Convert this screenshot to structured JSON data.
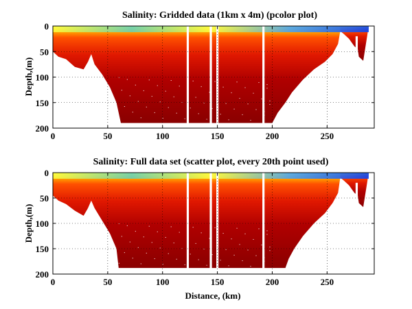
{
  "chart_data": [
    {
      "type": "heatmap",
      "title": "Salinity: Gridded data (1km x 4m) (pcolor plot)",
      "xlabel": "",
      "ylabel": "Depth,(m)",
      "xlim": [
        0,
        293
      ],
      "ylim": [
        200,
        0
      ],
      "x_ticks": [
        0,
        50,
        100,
        150,
        200,
        250
      ],
      "y_ticks": [
        0,
        50,
        100,
        150,
        200
      ],
      "grid": true,
      "colormap": "jet",
      "bottom_profile": [
        [
          0,
          50
        ],
        [
          5,
          60
        ],
        [
          12,
          65
        ],
        [
          20,
          80
        ],
        [
          28,
          85
        ],
        [
          32,
          70
        ],
        [
          35,
          55
        ],
        [
          38,
          75
        ],
        [
          45,
          95
        ],
        [
          52,
          120
        ],
        [
          58,
          150
        ],
        [
          62,
          190
        ],
        [
          200,
          190
        ],
        [
          205,
          170
        ],
        [
          212,
          150
        ],
        [
          218,
          130
        ],
        [
          228,
          105
        ],
        [
          238,
          85
        ],
        [
          248,
          70
        ],
        [
          255,
          55
        ],
        [
          260,
          35
        ],
        [
          262,
          10
        ]
      ],
      "bottom_profile_right": [
        [
          262,
          10
        ],
        [
          265,
          15
        ],
        [
          270,
          25
        ],
        [
          275,
          40
        ],
        [
          278,
          45
        ],
        [
          279,
          60
        ],
        [
          283,
          68
        ],
        [
          288,
          0
        ]
      ],
      "gaps": [
        {
          "x": [
            122,
            124
          ],
          "depth": [
            0,
            200
          ]
        },
        {
          "x": [
            143,
            145
          ],
          "depth": [
            0,
            200
          ]
        },
        {
          "x": [
            149,
            151
          ],
          "depth": [
            0,
            200
          ]
        },
        {
          "x": [
            191,
            193
          ],
          "depth": [
            0,
            200
          ]
        },
        {
          "x": [
            276,
            278
          ],
          "depth": [
            20,
            200
          ]
        }
      ],
      "surface_band": {
        "depth": [
          0,
          12
        ],
        "value": "low"
      },
      "colors": {
        "deep": "#8b0000",
        "mid": "#e02000",
        "upper": "#ff8c00",
        "surface": "#ffff40",
        "fresh": "#40c0ff",
        "freshest": "#0040ff"
      }
    },
    {
      "type": "scatter",
      "title": "Salinity: Full data set (scatter plot, every 20th point used)",
      "xlabel": "Distance, (km)",
      "ylabel": "Depth,(m)",
      "xlim": [
        0,
        293
      ],
      "ylim": [
        200,
        0
      ],
      "x_ticks": [
        0,
        50,
        100,
        150,
        200,
        250
      ],
      "y_ticks": [
        0,
        50,
        100,
        150,
        200
      ],
      "grid": true,
      "colormap": "jet",
      "bottom_profile": [
        [
          0,
          45
        ],
        [
          5,
          55
        ],
        [
          12,
          62
        ],
        [
          20,
          75
        ],
        [
          28,
          85
        ],
        [
          32,
          70
        ],
        [
          35,
          55
        ],
        [
          38,
          70
        ],
        [
          45,
          95
        ],
        [
          52,
          120
        ],
        [
          58,
          150
        ],
        [
          60,
          188
        ],
        [
          212,
          188
        ],
        [
          215,
          170
        ],
        [
          220,
          150
        ],
        [
          228,
          125
        ],
        [
          238,
          100
        ],
        [
          248,
          80
        ],
        [
          255,
          60
        ],
        [
          260,
          40
        ],
        [
          262,
          10
        ]
      ],
      "bottom_profile_right": [
        [
          262,
          10
        ],
        [
          265,
          15
        ],
        [
          270,
          25
        ],
        [
          275,
          40
        ],
        [
          278,
          45
        ],
        [
          279,
          60
        ],
        [
          283,
          68
        ],
        [
          288,
          0
        ]
      ],
      "gaps": [
        {
          "x": [
            122,
            124
          ],
          "depth": [
            0,
            200
          ]
        },
        {
          "x": [
            143,
            145
          ],
          "depth": [
            0,
            200
          ]
        },
        {
          "x": [
            149,
            151
          ],
          "depth": [
            0,
            200
          ]
        },
        {
          "x": [
            191,
            193
          ],
          "depth": [
            0,
            200
          ]
        },
        {
          "x": [
            276,
            278
          ],
          "depth": [
            20,
            200
          ]
        }
      ],
      "surface_band": {
        "depth": [
          0,
          12
        ],
        "value": "low"
      },
      "colors": {
        "deep": "#8b0000",
        "mid": "#e02000",
        "upper": "#ff8c00",
        "surface": "#ffff40",
        "fresh": "#40c0ff",
        "freshest": "#0040ff"
      }
    }
  ]
}
